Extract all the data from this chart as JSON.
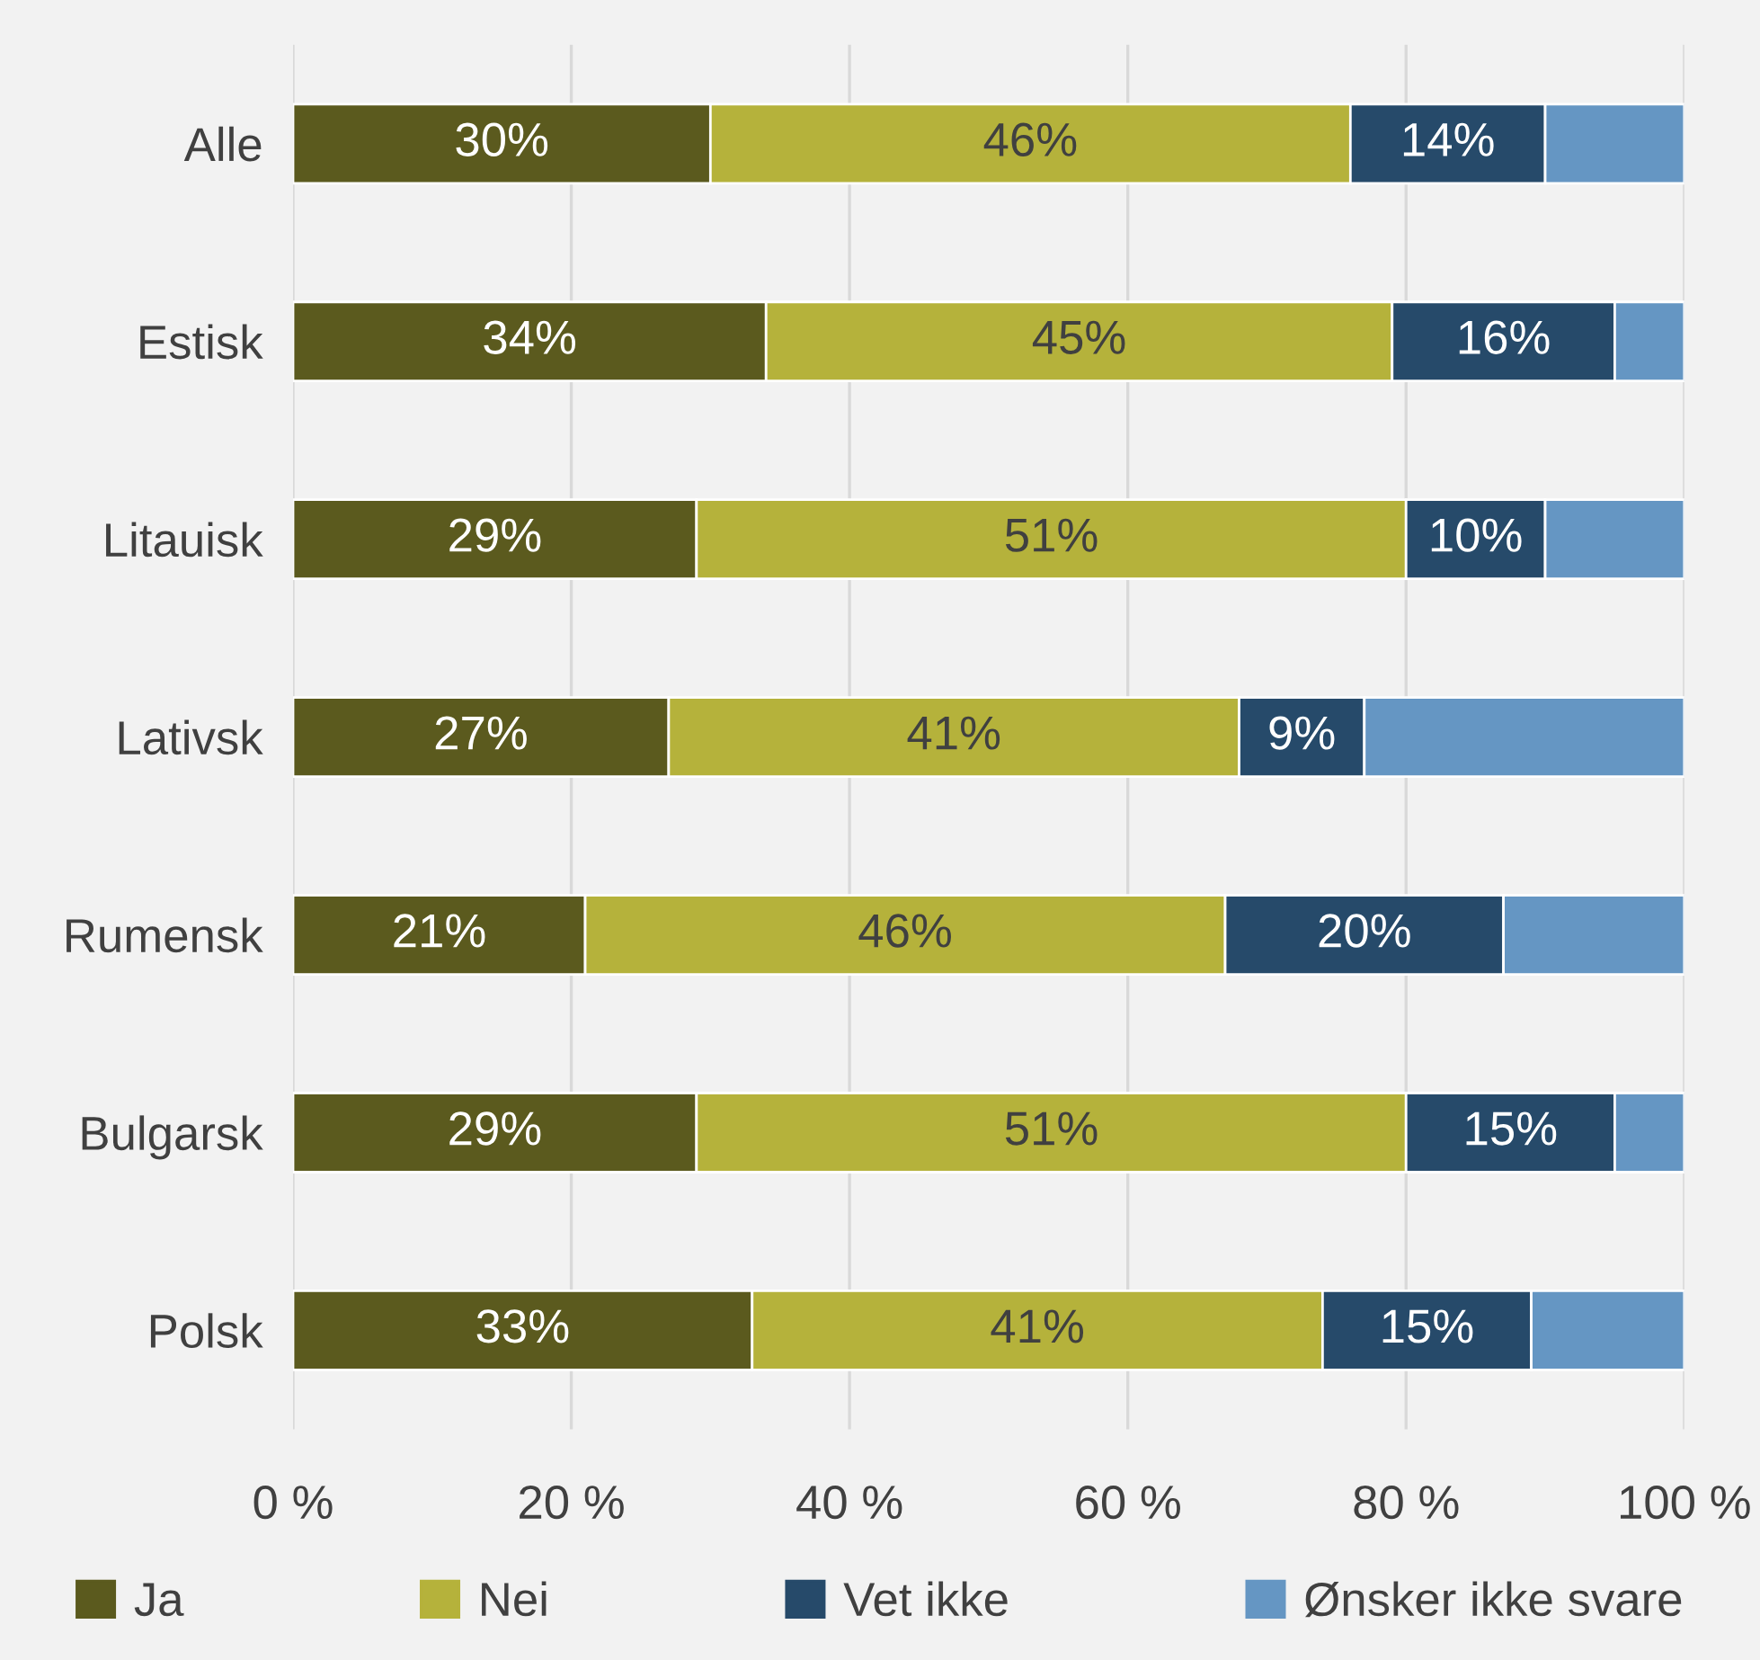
{
  "chart_data": {
    "type": "bar",
    "orientation": "horizontal",
    "stacked": true,
    "categories": [
      "Alle",
      "Estisk",
      "Litauisk",
      "Lativsk",
      "Rumensk",
      "Bulgarsk",
      "Polsk"
    ],
    "series": [
      {
        "name": "Ja",
        "color": "#5b5a1e",
        "values": [
          30,
          34,
          29,
          27,
          21,
          29,
          33
        ],
        "value_labels": [
          "30%",
          "34%",
          "29%",
          "27%",
          "21%",
          "29%",
          "33%"
        ]
      },
      {
        "name": "Nei",
        "color": "#b5b23b",
        "values": [
          46,
          45,
          51,
          41,
          46,
          51,
          41
        ],
        "value_labels": [
          "46%",
          "45%",
          "51%",
          "41%",
          "46%",
          "51%",
          "41%"
        ]
      },
      {
        "name": "Vet ikke",
        "color": "#264a6a",
        "values": [
          14,
          16,
          10,
          9,
          20,
          15,
          15
        ],
        "value_labels": [
          "14%",
          "16%",
          "10%",
          "9%",
          "20%",
          "15%",
          "15%"
        ]
      },
      {
        "name": "Ønsker ikke svare",
        "color": "#6596c3",
        "values": [
          10,
          5,
          10,
          23,
          13,
          5,
          11
        ]
      }
    ],
    "xlim": [
      0,
      100
    ],
    "xticks": [
      {
        "value": 0,
        "label": "0 %"
      },
      {
        "value": 20,
        "label": "20 %"
      },
      {
        "value": 40,
        "label": "40 %"
      },
      {
        "value": 60,
        "label": "60 %"
      },
      {
        "value": 80,
        "label": "80 %"
      },
      {
        "value": 100,
        "label": "100 %"
      }
    ],
    "grid": "x",
    "legend": "bottom"
  }
}
